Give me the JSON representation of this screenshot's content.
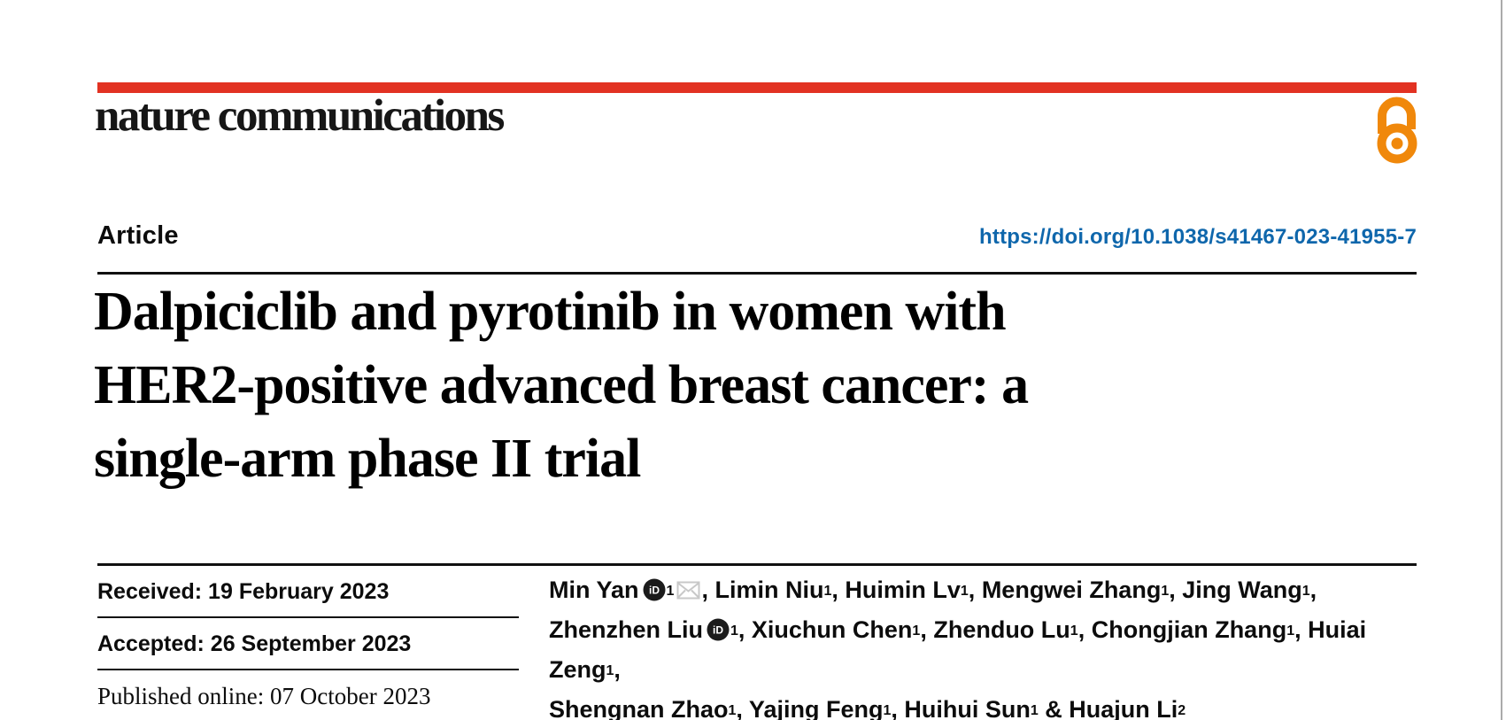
{
  "journal": {
    "name": "nature communications"
  },
  "article": {
    "type_label": "Article",
    "doi": "https://doi.org/10.1038/s41467-023-41955-7",
    "title_lines": [
      "Dalpiciclib and pyrotinib in women with",
      "HER2-positive advanced breast cancer: a",
      "single-arm phase II trial"
    ]
  },
  "history": [
    {
      "text": "Received: 19 February 2023",
      "style": "sans"
    },
    {
      "text": "Accepted: 26 September 2023",
      "style": "sans"
    },
    {
      "text": "Published online: 07 October 2023",
      "style": "serif"
    }
  ],
  "authors": {
    "lines": [
      {
        "segments": [
          {
            "name": "Min Yan",
            "orcid": true,
            "sup": "1",
            "email": true,
            "trail": ", "
          },
          {
            "name": "Limin Niu",
            "sup": "1",
            "trail": ", "
          },
          {
            "name": "Huimin Lv",
            "sup": "1",
            "trail": ", "
          },
          {
            "name": "Mengwei Zhang",
            "sup": "1",
            "trail": ", "
          },
          {
            "name": "Jing Wang",
            "sup": "1",
            "trail": ","
          }
        ]
      },
      {
        "segments": [
          {
            "name": "Zhenzhen Liu",
            "orcid": true,
            "sup": "1",
            "trail": ", "
          },
          {
            "name": "Xiuchun Chen",
            "sup": "1",
            "trail": ", "
          },
          {
            "name": "Zhenduo Lu",
            "sup": "1",
            "trail": ", "
          },
          {
            "name": "Chongjian Zhang",
            "sup": "1",
            "trail": ", "
          },
          {
            "name": "Huiai Zeng",
            "sup": "1",
            "trail": ","
          }
        ]
      },
      {
        "segments": [
          {
            "name": "Shengnan Zhao",
            "sup": "1",
            "trail": ", "
          },
          {
            "name": "Yajing Feng",
            "sup": "1",
            "trail": ", "
          },
          {
            "name": "Huihui Sun",
            "sup": "1",
            "trail": " & "
          },
          {
            "name": "Huajun Li",
            "sup": "2",
            "trail": ""
          }
        ]
      }
    ]
  },
  "colors": {
    "brand_red": "#e23222",
    "doi_blue": "#0f67ac",
    "oa_orange": "#f0880b",
    "envelope_gray": "#c8c8c8"
  }
}
